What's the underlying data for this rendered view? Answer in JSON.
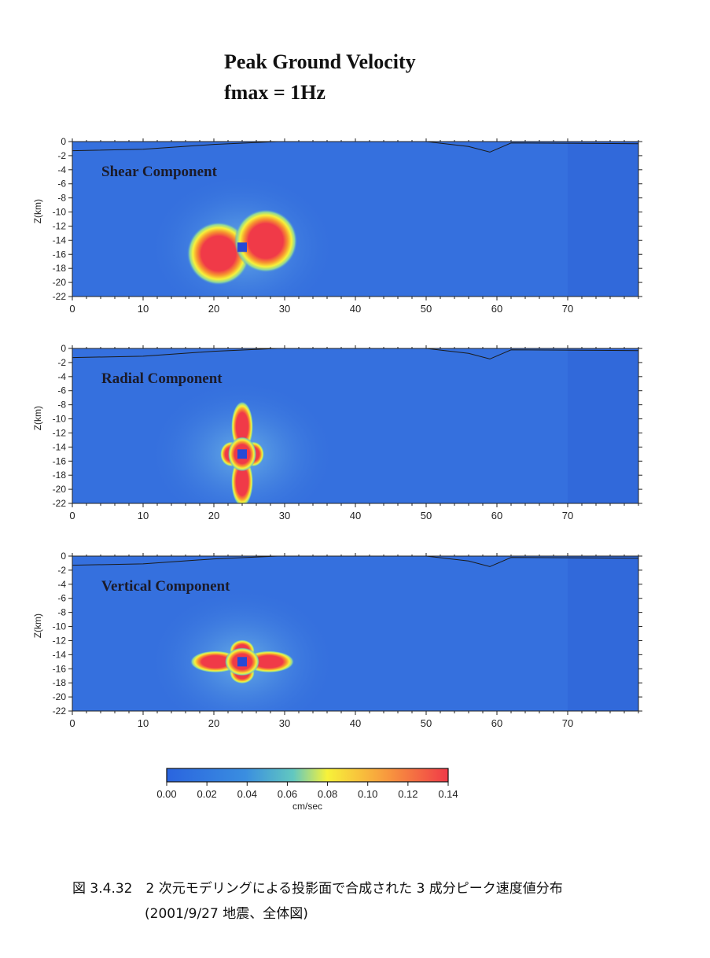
{
  "page": {
    "title_line1": "Peak Ground Velocity",
    "title_line2": "fmax = 1Hz",
    "caption_line1": "図 3.4.32　2 次元モデリングによる投影面で合成された 3 成分ピーク速度値分布",
    "caption_line2": "(2001/9/27 地震、全体図)"
  },
  "colors": {
    "background_field": "#3570de",
    "low": "#2f6ae0",
    "mid": "#62c8c0",
    "yellow": "#f7f23a",
    "high": "#f03a48",
    "source_marker": "#2549d6"
  },
  "chart_data": [
    {
      "type": "heatmap",
      "title": "Shear Component",
      "ylabel": "Z(km)",
      "xlabel": "",
      "xlim": [
        0,
        80
      ],
      "ylim": [
        -22,
        0
      ],
      "x_ticks": [
        "0",
        "10",
        "20",
        "30",
        "40",
        "50",
        "60",
        "70"
      ],
      "y_ticks": [
        "0",
        "-2",
        "-4",
        "-6",
        "-8",
        "-10",
        "-12",
        "-14",
        "-16",
        "-18",
        "-20",
        "-22"
      ],
      "source": {
        "x": 24,
        "z": -15
      },
      "pattern": "two-lobe",
      "peak_value": 0.14
    },
    {
      "type": "heatmap",
      "title": "Radial Component",
      "ylabel": "Z(km)",
      "xlabel": "",
      "xlim": [
        0,
        80
      ],
      "ylim": [
        -22,
        0
      ],
      "x_ticks": [
        "0",
        "10",
        "20",
        "30",
        "40",
        "50",
        "60",
        "70"
      ],
      "y_ticks": [
        "0",
        "-2",
        "-4",
        "-6",
        "-8",
        "-10",
        "-12",
        "-14",
        "-16",
        "-18",
        "-20",
        "-22"
      ],
      "source": {
        "x": 24,
        "z": -15
      },
      "pattern": "four-lobe-vertical",
      "peak_value": 0.14
    },
    {
      "type": "heatmap",
      "title": "Vertical Component",
      "ylabel": "Z(km)",
      "xlabel": "",
      "xlim": [
        0,
        80
      ],
      "ylim": [
        -22,
        0
      ],
      "x_ticks": [
        "0",
        "10",
        "20",
        "30",
        "40",
        "50",
        "60",
        "70"
      ],
      "y_ticks": [
        "0",
        "-2",
        "-4",
        "-6",
        "-8",
        "-10",
        "-12",
        "-14",
        "-16",
        "-18",
        "-20",
        "-22"
      ],
      "source": {
        "x": 24,
        "z": -15
      },
      "pattern": "four-lobe-horizontal",
      "peak_value": 0.14
    }
  ],
  "basin_profile": {
    "x": [
      0,
      10,
      20,
      29,
      50,
      56,
      59,
      62,
      80
    ],
    "z": [
      -1.3,
      -1.1,
      -0.4,
      0,
      0,
      -0.7,
      -1.5,
      -0.2,
      -0.3
    ]
  },
  "colorbar": {
    "min": 0,
    "max": 0.14,
    "ticks": [
      "0.00",
      "0.02",
      "0.04",
      "0.06",
      "0.08",
      "0.10",
      "0.12",
      "0.14"
    ],
    "label": "cm/sec"
  }
}
